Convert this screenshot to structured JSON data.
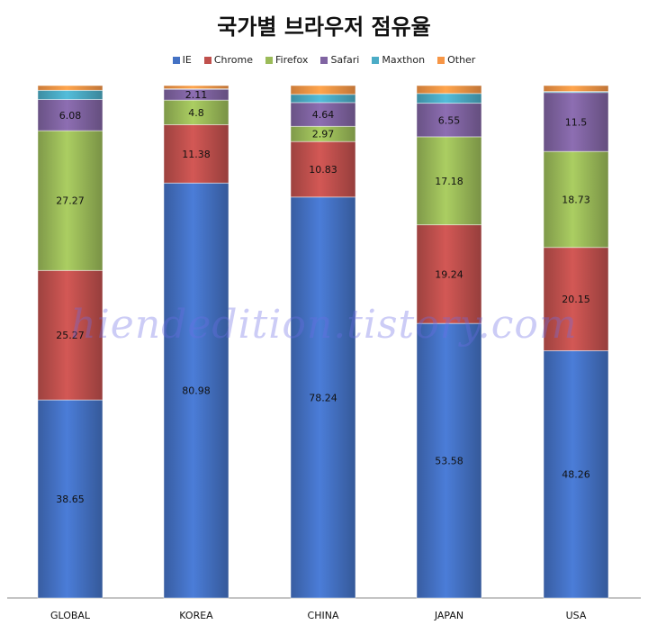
{
  "chart_data": {
    "type": "bar",
    "stacked": true,
    "title": "국가별 브라우저 점유율",
    "categories": [
      "GLOBAL",
      "KOREA",
      "CHINA",
      "JAPAN",
      "USA"
    ],
    "series": [
      {
        "name": "IE",
        "color": "#4472C4",
        "values": [
          38.65,
          80.98,
          78.24,
          53.58,
          48.26
        ]
      },
      {
        "name": "Chrome",
        "color": "#C0504D",
        "values": [
          25.27,
          11.38,
          10.83,
          19.24,
          20.15
        ]
      },
      {
        "name": "Firefox",
        "color": "#9BBB59",
        "values": [
          27.27,
          4.8,
          2.97,
          17.18,
          18.73
        ]
      },
      {
        "name": "Safari",
        "color": "#8064A2",
        "values": [
          6.08,
          2.11,
          4.64,
          6.55,
          11.5
        ]
      },
      {
        "name": "Maxthon",
        "color": "#4BACC6",
        "values": [
          1.8,
          0.1,
          1.6,
          1.9,
          0.2
        ]
      },
      {
        "name": "Other",
        "color": "#F79646",
        "values": [
          0.93,
          0.63,
          1.72,
          1.55,
          1.16
        ]
      }
    ],
    "data_labels": {
      "IE": [
        "38.65",
        "80.98",
        "78.24",
        "53.58",
        "48.26"
      ],
      "Chrome": [
        "25.27",
        "11.38",
        "10.83",
        "19.24",
        "20.15"
      ],
      "Firefox": [
        "27.27",
        "4.8",
        "2.97",
        "17.18",
        "18.73"
      ],
      "Safari": [
        "6.08",
        "2.11",
        "4.64",
        "6.55",
        "11.5"
      ]
    },
    "ylim": [
      0,
      100
    ],
    "legend_position": "top",
    "grid": false
  },
  "watermark": "hiendedition.tistory.com"
}
